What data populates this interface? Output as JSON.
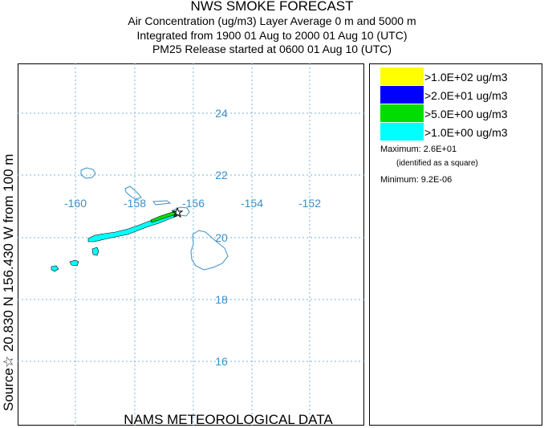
{
  "title": {
    "line1": "NWS SMOKE FORECAST",
    "line2": "Air Concentration (ug/m3) Layer Average    0 m and  5000 m",
    "line3": "Integrated from 1900 01 Aug to 2000 01 Aug 10 (UTC)",
    "line4": "PM25 Release started at 0600 01 Aug 10 (UTC)"
  },
  "source_label": "Source☆ 20.830  N 156.430  W     from  100 m",
  "bottom_label": "NAMS METEOROLOGICAL DATA",
  "map": {
    "longitude_labels": [
      "-160",
      "-158",
      "-156",
      "-154",
      "-152"
    ],
    "latitude_labels": [
      "24",
      "22",
      "20",
      "18",
      "16"
    ],
    "grid_color": "#74b4e0",
    "label_color": "#3a8fc8",
    "coastline_color": "#3a8fc8",
    "source_marker_icon": "star-icon"
  },
  "legend": {
    "items": [
      {
        "label": ">1.0E+02 ug/m3",
        "color": "#ffff00"
      },
      {
        "label": ">2.0E+01 ug/m3",
        "color": "#0000ff"
      },
      {
        "label": ">5.0E+00 ug/m3",
        "color": "#00dd00"
      },
      {
        "label": ">1.0E+00 ug/m3",
        "color": "#00ffff"
      }
    ],
    "maximum_label": "Maximum: 2.6E+01",
    "maximum_note": "(identified as a square)",
    "minimum_label": "Minimum: 9.2E-06"
  }
}
